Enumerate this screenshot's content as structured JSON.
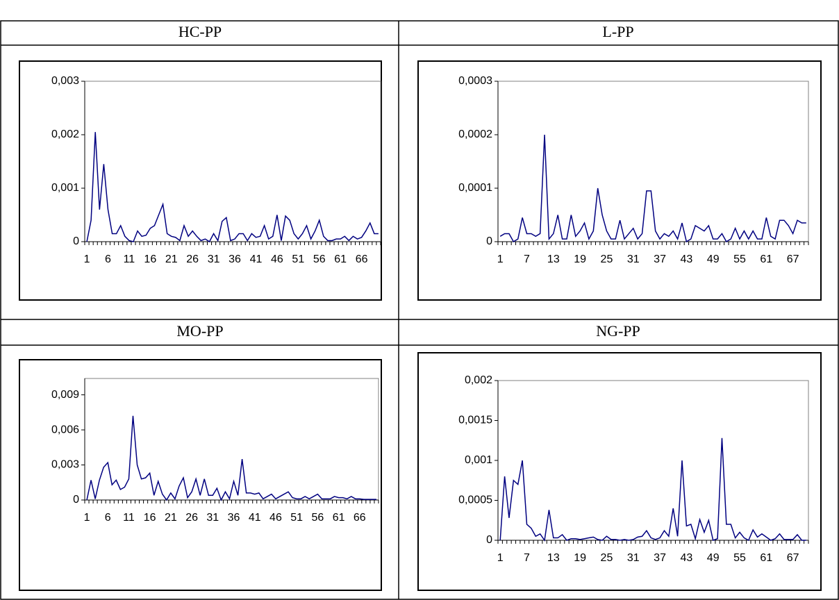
{
  "chart_data": [
    {
      "type": "line",
      "title": "HC-PP",
      "color": "#000080",
      "categories": [
        "1",
        null,
        null,
        null,
        null,
        "6",
        null,
        null,
        null,
        null,
        "11",
        null,
        null,
        null,
        null,
        "16",
        null,
        null,
        null,
        null,
        "21",
        null,
        null,
        null,
        null,
        "26",
        null,
        null,
        null,
        null,
        "31",
        null,
        null,
        null,
        null,
        "36",
        null,
        null,
        null,
        null,
        "41",
        null,
        null,
        null,
        null,
        "46",
        null,
        null,
        null,
        null,
        "51",
        null,
        null,
        null,
        null,
        "56",
        null,
        null,
        null,
        null,
        "61",
        null,
        null,
        null,
        null,
        "66",
        null,
        null,
        null,
        null
      ],
      "values": [
        0,
        0.0004,
        0.00205,
        0.0006,
        0.00145,
        0.0006,
        0.00015,
        0.00015,
        0.0003,
        0.0001,
        2e-05,
        0,
        0.0002,
        0.0001,
        0.00012,
        0.00025,
        0.0003,
        0.0005,
        0.0007,
        0.00015,
        0.0001,
        8e-05,
        2e-05,
        0.0003,
        0.0001,
        0.0002,
        0.0001,
        2e-05,
        5e-05,
        0,
        0.00015,
        2e-05,
        0.00038,
        0.00045,
        2e-05,
        5e-05,
        0.00015,
        0.00015,
        2e-05,
        0.00015,
        8e-05,
        0.0001,
        0.0003,
        5e-05,
        0.0001,
        0.0005,
        2e-05,
        0.00048,
        0.0004,
        0.00015,
        5e-05,
        0.00015,
        0.0003,
        5e-05,
        0.0002,
        0.0004,
        0.0001,
        2e-05,
        2e-05,
        5e-05,
        5e-05,
        0.0001,
        2e-05,
        0.0001,
        5e-05,
        8e-05,
        0.0002,
        0.00035,
        0.00015,
        0.00015
      ],
      "ylim": [
        0,
        0.003
      ],
      "yticks": [
        0,
        {
          "value": 0.001,
          "label": "0,001"
        },
        {
          "value": 0.002,
          "label": "0,002"
        },
        {
          "value": 0.003,
          "label": "0,003"
        }
      ]
    },
    {
      "type": "line",
      "title": "L-PP",
      "color": "#000080",
      "categories": [
        "1",
        null,
        null,
        null,
        null,
        null,
        "7",
        null,
        null,
        null,
        null,
        null,
        "13",
        null,
        null,
        null,
        null,
        null,
        "19",
        null,
        null,
        null,
        null,
        null,
        "25",
        null,
        null,
        null,
        null,
        null,
        "31",
        null,
        null,
        null,
        null,
        null,
        "37",
        null,
        null,
        null,
        null,
        null,
        "43",
        null,
        null,
        null,
        null,
        null,
        "49",
        null,
        null,
        null,
        null,
        null,
        "55",
        null,
        null,
        null,
        null,
        null,
        "61",
        null,
        null,
        null,
        null,
        null,
        "67",
        null,
        null,
        null
      ],
      "values": [
        1e-05,
        1.5e-05,
        1.5e-05,
        0,
        5e-06,
        4.5e-05,
        1.5e-05,
        1.5e-05,
        1e-05,
        1.5e-05,
        0.0002,
        5e-06,
        1.5e-05,
        5e-05,
        5e-06,
        5e-06,
        5e-05,
        1e-05,
        2e-05,
        3.5e-05,
        5e-06,
        2e-05,
        0.0001,
        5e-05,
        2e-05,
        5e-06,
        5e-06,
        4e-05,
        5e-06,
        1.5e-05,
        2.5e-05,
        5e-06,
        1.5e-05,
        9.5e-05,
        9.5e-05,
        2e-05,
        5e-06,
        1.5e-05,
        1e-05,
        2e-05,
        5e-06,
        3.5e-05,
        0,
        5e-06,
        3e-05,
        2.5e-05,
        2e-05,
        3e-05,
        5e-06,
        5e-06,
        1.5e-05,
        0,
        5e-06,
        2.5e-05,
        5e-06,
        2e-05,
        5e-06,
        2e-05,
        5e-06,
        5e-06,
        4.5e-05,
        1e-05,
        5e-06,
        4e-05,
        4e-05,
        3e-05,
        1.5e-05,
        4e-05,
        3.5e-05,
        3.5e-05
      ],
      "ylim": [
        0,
        0.0003
      ],
      "yticks": [
        0,
        {
          "value": 0.0001,
          "label": "0,0001"
        },
        {
          "value": 0.0002,
          "label": "0,0002"
        },
        {
          "value": 0.0003,
          "label": "0,0003"
        }
      ]
    },
    {
      "type": "line",
      "title": "MO-PP",
      "color": "#000080",
      "categories": [
        "1",
        null,
        null,
        null,
        null,
        "6",
        null,
        null,
        null,
        null,
        "11",
        null,
        null,
        null,
        null,
        "16",
        null,
        null,
        null,
        null,
        "21",
        null,
        null,
        null,
        null,
        "26",
        null,
        null,
        null,
        null,
        "31",
        null,
        null,
        null,
        null,
        "36",
        null,
        null,
        null,
        null,
        "41",
        null,
        null,
        null,
        null,
        "46",
        null,
        null,
        null,
        null,
        "51",
        null,
        null,
        null,
        null,
        "56",
        null,
        null,
        null,
        null,
        "61",
        null,
        null,
        null,
        null,
        "66",
        null,
        null,
        null,
        null
      ],
      "values": [
        0,
        0.0017,
        0.0001,
        0.0017,
        0.0028,
        0.0032,
        0.0013,
        0.0017,
        0.0009,
        0.0011,
        0.0018,
        0.0072,
        0.003,
        0.0018,
        0.0019,
        0.0023,
        0.0004,
        0.0016,
        0.0005,
        0,
        0.0006,
        0.0001,
        0.0012,
        0.0019,
        0.0002,
        0.0007,
        0.0018,
        0.0004,
        0.0018,
        0.0004,
        0.0004,
        0.001,
        0,
        0.0007,
        0.0001,
        0.0016,
        0.0004,
        0.0035,
        0.0006,
        0.0006,
        0.0005,
        0.0006,
        0.0001,
        0.0003,
        0.0005,
        0.0001,
        0.0003,
        0.0005,
        0.0007,
        0.0002,
        0.0001,
        0.0001,
        0.0003,
        0.0001,
        0.0003,
        0.0005,
        0.0001,
        0.0001,
        0.0001,
        0.0003,
        0.0002,
        0.0002,
        0.0001,
        0.0003,
        0.0001,
        0.0001,
        5e-05,
        5e-05,
        5e-05,
        5e-05
      ],
      "ylim": [
        0,
        0.0104
      ],
      "yticks": [
        0,
        {
          "value": 0.003,
          "label": "0,003"
        },
        {
          "value": 0.006,
          "label": "0,006"
        },
        {
          "value": 0.009,
          "label": "0,009"
        }
      ]
    },
    {
      "type": "line",
      "title": "NG-PP",
      "color": "#000080",
      "categories": [
        "1",
        null,
        null,
        null,
        null,
        null,
        "7",
        null,
        null,
        null,
        null,
        null,
        "13",
        null,
        null,
        null,
        null,
        null,
        "19",
        null,
        null,
        null,
        null,
        null,
        "25",
        null,
        null,
        null,
        null,
        null,
        "31",
        null,
        null,
        null,
        null,
        null,
        "37",
        null,
        null,
        null,
        null,
        null,
        "43",
        null,
        null,
        null,
        null,
        null,
        "49",
        null,
        null,
        null,
        null,
        null,
        "55",
        null,
        null,
        null,
        null,
        null,
        "61",
        null,
        null,
        null,
        null,
        null,
        "67",
        null,
        null,
        null
      ],
      "values": [
        0,
        0.0008,
        0.00028,
        0.00075,
        0.0007,
        0.001,
        0.0002,
        0.00015,
        5e-05,
        8e-05,
        0,
        0.00038,
        3e-05,
        3e-05,
        7e-05,
        0,
        2e-05,
        2e-05,
        1e-05,
        2e-05,
        3e-05,
        4e-05,
        1e-05,
        0,
        5e-05,
        1e-05,
        1e-05,
        0,
        1e-05,
        0,
        1e-05,
        4e-05,
        5e-05,
        0.00012,
        3e-05,
        1e-05,
        3e-05,
        0.00012,
        5e-05,
        0.0004,
        5e-05,
        0.001,
        0.00018,
        0.0002,
        2e-05,
        0.00026,
        0.0001,
        0.00025,
        0,
        2e-05,
        0.00128,
        0.0002,
        0.0002,
        3e-05,
        0.0001,
        3e-05,
        0,
        0.00013,
        4e-05,
        8e-05,
        4e-05,
        0,
        2e-05,
        8e-05,
        1e-05,
        1e-05,
        1e-05,
        7e-05,
        0,
        0
      ],
      "ylim": [
        0,
        0.002
      ],
      "yticks": [
        0,
        {
          "value": 0.0005,
          "label": "0,0005"
        },
        {
          "value": 0.001,
          "label": "0,001"
        },
        {
          "value": 0.0015,
          "label": "0,0015"
        },
        {
          "value": 0.002,
          "label": "0,002"
        }
      ]
    }
  ]
}
